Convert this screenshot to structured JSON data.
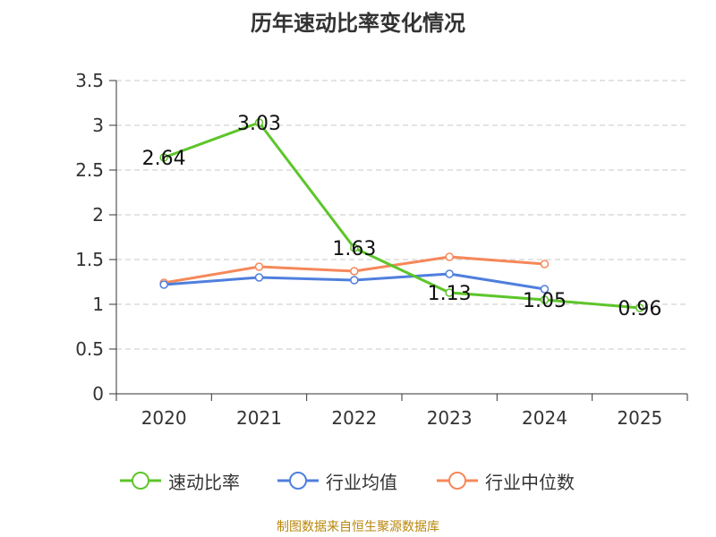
{
  "title": "历年速动比率变化情况",
  "source": "制图数据来自恒生聚源数据库",
  "colors": {
    "series1": "#5dc52a",
    "series2": "#4f7fdd",
    "series3": "#f5885a",
    "grid": "#c8c8c8",
    "axis": "#333333"
  },
  "chart_data": {
    "type": "line",
    "title": "历年速动比率变化情况",
    "categories": [
      "2020",
      "2021",
      "2022",
      "2023",
      "2024",
      "2025"
    ],
    "ylim": [
      0,
      3.5
    ],
    "yticks": [
      "0",
      "0.5",
      "1",
      "1.5",
      "2",
      "2.5",
      "3",
      "3.5"
    ],
    "grid": true,
    "legend_position": "bottom",
    "series": [
      {
        "name": "速动比率",
        "values": [
          2.64,
          3.03,
          1.63,
          1.13,
          1.05,
          0.96
        ],
        "labels": [
          "2.64",
          "3.03",
          "1.63",
          "1.13",
          "1.05",
          "0.96"
        ]
      },
      {
        "name": "行业均值",
        "values": [
          1.22,
          1.3,
          1.27,
          1.34,
          1.17,
          null
        ]
      },
      {
        "name": "行业中位数",
        "values": [
          1.24,
          1.42,
          1.37,
          1.53,
          1.45,
          null
        ]
      }
    ]
  }
}
